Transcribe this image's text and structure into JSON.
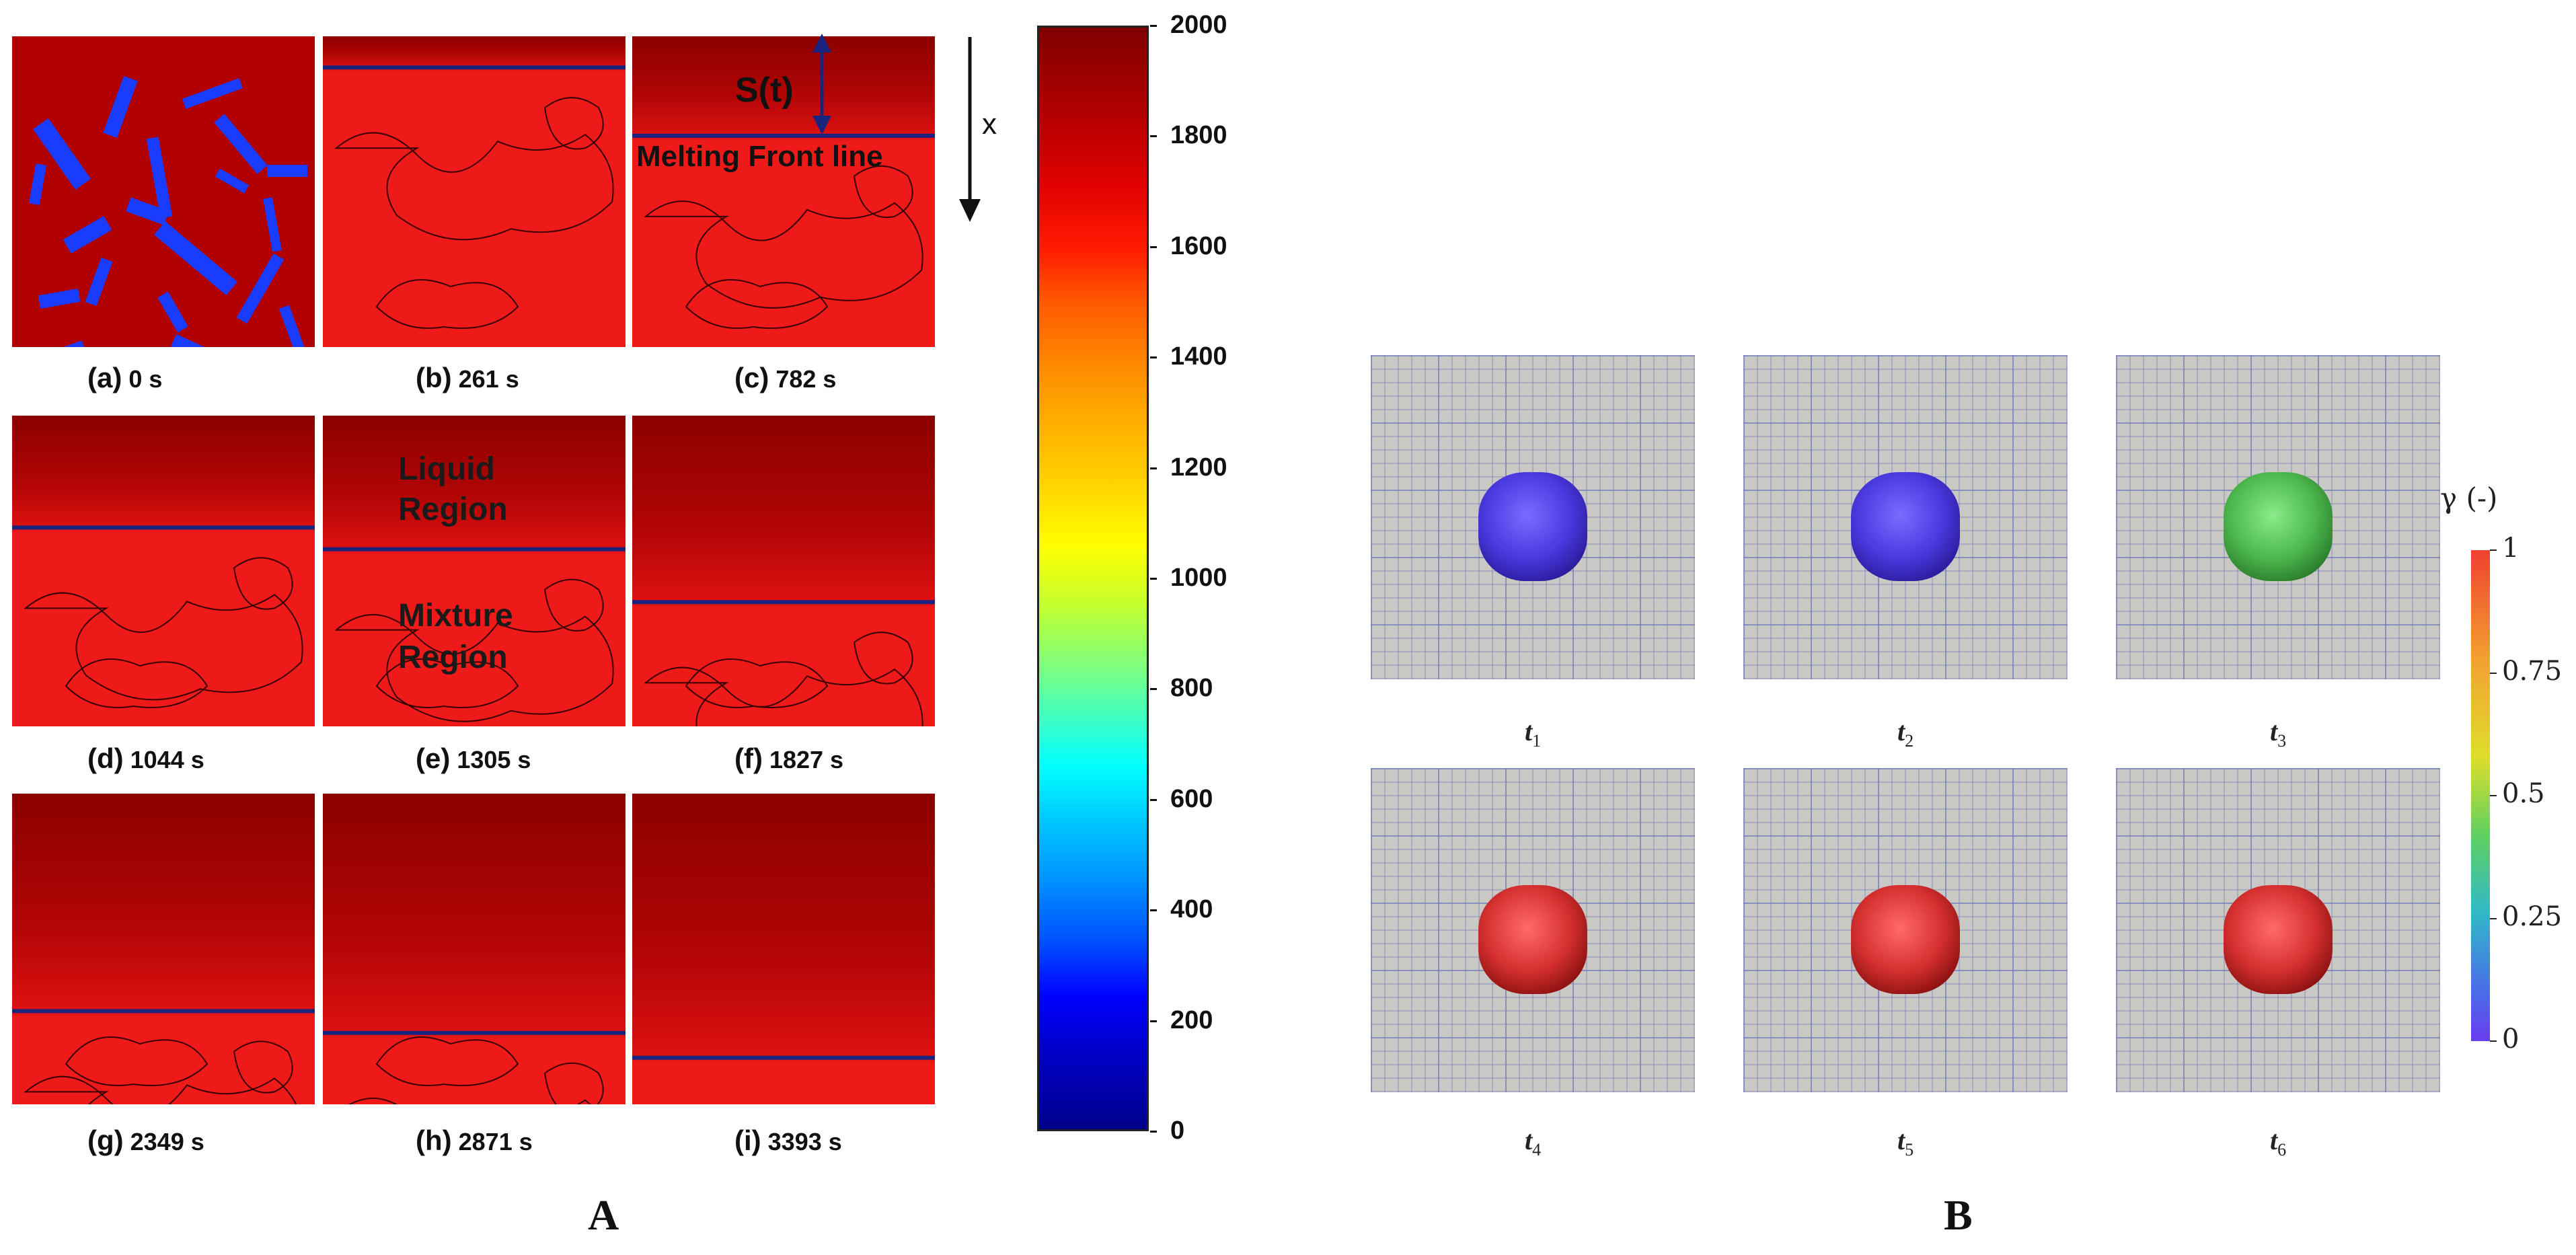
{
  "panel_a": {
    "label": "A",
    "frames": [
      {
        "id": "a",
        "letter": "(a)",
        "time": "0 s",
        "front": null
      },
      {
        "id": "b",
        "letter": "(b)",
        "time": "261 s",
        "front": 0.1
      },
      {
        "id": "c",
        "letter": "(c)",
        "time": "782 s",
        "front": 0.32
      },
      {
        "id": "d",
        "letter": "(d)",
        "time": "1044 s",
        "front": 0.36
      },
      {
        "id": "e",
        "letter": "(e)",
        "time": "1305 s",
        "front": 0.43
      },
      {
        "id": "f",
        "letter": "(f)",
        "time": "1827 s",
        "front": 0.6
      },
      {
        "id": "g",
        "letter": "(g)",
        "time": "2349 s",
        "front": 0.7
      },
      {
        "id": "h",
        "letter": "(h)",
        "time": "2871 s",
        "front": 0.77
      },
      {
        "id": "i",
        "letter": "(i)",
        "time": "3393 s",
        "front": 0.85
      }
    ],
    "annotations": {
      "st": "S(t)",
      "melting_front": "Melting Front line",
      "liquid_line1": "Liquid",
      "liquid_line2": "Region",
      "mixture_line1": "Mixture",
      "mixture_line2": "Region",
      "x_axis": "x"
    },
    "colorbar": {
      "min": 0,
      "max": 2000,
      "ticks": [
        "2000",
        "1800",
        "1600",
        "1400",
        "1200",
        "1000",
        "800",
        "600",
        "400",
        "200",
        "0"
      ]
    }
  },
  "panel_b": {
    "label": "B",
    "frames": [
      {
        "t": "t",
        "sub": "1",
        "gamma": 0
      },
      {
        "t": "t",
        "sub": "2",
        "gamma": 0
      },
      {
        "t": "t",
        "sub": "3",
        "gamma": 0.5
      },
      {
        "t": "t",
        "sub": "4",
        "gamma": 1
      },
      {
        "t": "t",
        "sub": "5",
        "gamma": 1
      },
      {
        "t": "t",
        "sub": "6",
        "gamma": 1
      }
    ],
    "colorbar": {
      "title": "γ (-)",
      "ticks": [
        "1",
        "0.75",
        "0.5",
        "0.25",
        "0"
      ]
    }
  },
  "colors": {
    "melt_red": "#ee1a1a",
    "hot_top": "#8b0000",
    "front_line": "#1a237e",
    "fiber_blue": "#1a3cff",
    "grid_bg": "#c9c8c4",
    "grid_line": "#6f78b8"
  }
}
